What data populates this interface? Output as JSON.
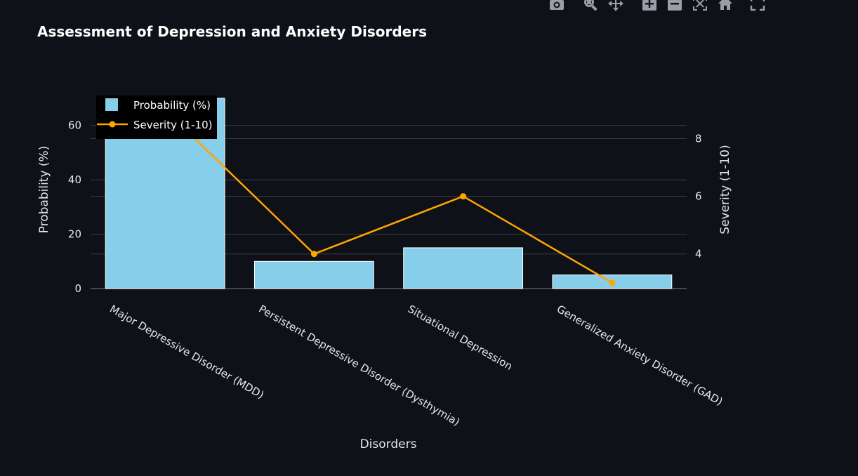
{
  "modebar": {
    "buttons": [
      {
        "icon": "camera-icon",
        "label": "Download plot as a png"
      },
      {
        "icon": "zoom-icon",
        "label": "Zoom"
      },
      {
        "icon": "pan-icon",
        "label": "Pan"
      },
      {
        "icon": "zoom-in-icon",
        "label": "Zoom in"
      },
      {
        "icon": "zoom-out-icon",
        "label": "Zoom out"
      },
      {
        "icon": "autoscale-icon",
        "label": "Autoscale"
      },
      {
        "icon": "home-icon",
        "label": "Reset axes"
      },
      {
        "icon": "fullscreen-icon",
        "label": "View fullscreen"
      }
    ],
    "icon_color": "#9a9ea6"
  },
  "colors": {
    "background": "#0e1117",
    "grid": "#3a3e46",
    "bar": "#87ceeb",
    "bar_edge": "#ffffff",
    "line": "#ffa500",
    "legend_bg": "#000000",
    "text": "#e6e6e6"
  },
  "chart_data": {
    "type": "bar",
    "title": "Assessment of Depression and Anxiety Disorders",
    "xlabel": "Disorders",
    "ylabel": "Probability (%)",
    "y2label": "Severity (1-10)",
    "categories": [
      "Major Depressive Disorder (MDD)",
      "Persistent Depressive Disorder (Dysthymia)",
      "Situational Depression",
      "Generalized Anxiety Disorder (GAD)"
    ],
    "series": [
      {
        "name": "Probability (%)",
        "type": "bar",
        "axis": "y",
        "values": [
          70,
          10,
          15,
          5
        ]
      },
      {
        "name": "Severity (1-10)",
        "type": "line",
        "axis": "y2",
        "values": [
          9,
          4,
          6,
          3
        ]
      }
    ],
    "ylim": [
      0,
      70
    ],
    "y2lim": [
      2.8,
      9.4
    ],
    "yticks": [
      0,
      20,
      40,
      60
    ],
    "y2ticks": [
      4,
      6,
      8
    ],
    "grid": true,
    "legend_position": "top-left"
  }
}
